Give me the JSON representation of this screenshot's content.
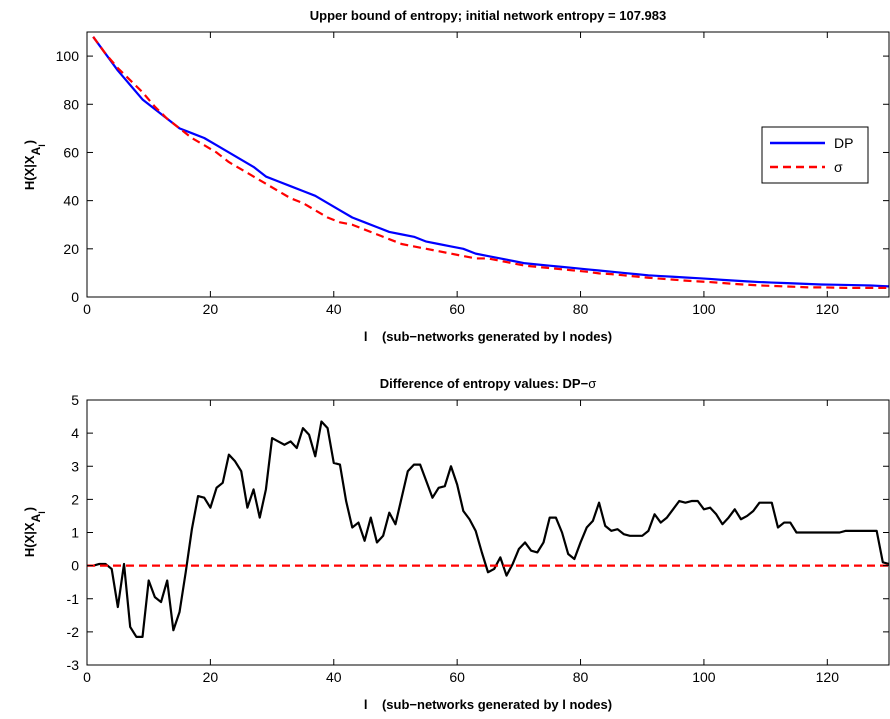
{
  "chart_data": [
    {
      "type": "line",
      "title": "Upper bound of entropy; initial network entropy = 107.983",
      "xlabel": "l    (sub−networks generated by l nodes)",
      "ylabel_main": "H(X|X",
      "ylabel_sub": "A",
      "ylabel_subsub": "l",
      "ylabel_close": ")",
      "xlim": [
        0,
        130
      ],
      "ylim": [
        0,
        110
      ],
      "xticks": [
        0,
        20,
        40,
        60,
        80,
        100,
        120
      ],
      "yticks": [
        0,
        20,
        40,
        60,
        80,
        100
      ],
      "legend_position": "right",
      "series": [
        {
          "name": "DP",
          "color": "#0000ff",
          "style": "solid",
          "x": [
            1,
            3,
            5,
            7,
            9,
            11,
            13,
            15,
            17,
            19,
            21,
            23,
            25,
            27,
            29,
            31,
            33,
            35,
            37,
            39,
            41,
            43,
            45,
            47,
            49,
            51,
            53,
            55,
            57,
            59,
            61,
            63,
            65,
            67,
            69,
            71,
            73,
            75,
            77,
            79,
            81,
            83,
            85,
            87,
            89,
            91,
            93,
            95,
            97,
            99,
            101,
            103,
            105,
            107,
            109,
            111,
            113,
            115,
            117,
            119,
            121,
            123,
            125,
            127,
            129,
            130
          ],
          "y": [
            108,
            101,
            94,
            88,
            82,
            78,
            74,
            70,
            68,
            66,
            63,
            60,
            57,
            54,
            50,
            48,
            46,
            44,
            42,
            39,
            36,
            33,
            31,
            29,
            27,
            26,
            25,
            23,
            22,
            21,
            20,
            18,
            17,
            16,
            15,
            14,
            13.5,
            13,
            12.5,
            12,
            11.5,
            11,
            10.5,
            10,
            9.5,
            9,
            8.7,
            8.4,
            8.1,
            7.8,
            7.5,
            7.1,
            6.8,
            6.5,
            6.2,
            6,
            5.8,
            5.6,
            5.4,
            5.2,
            5.1,
            5,
            4.9,
            4.8,
            4.5,
            4.4
          ]
        },
        {
          "name": "σ",
          "color": "#ff0000",
          "style": "dashed",
          "x": [
            1,
            3,
            5,
            7,
            9,
            11,
            13,
            15,
            17,
            19,
            21,
            23,
            25,
            27,
            29,
            31,
            33,
            35,
            37,
            39,
            41,
            43,
            45,
            47,
            49,
            51,
            53,
            55,
            57,
            59,
            61,
            63,
            65,
            67,
            69,
            71,
            73,
            75,
            77,
            79,
            81,
            83,
            85,
            87,
            89,
            91,
            93,
            95,
            97,
            99,
            101,
            103,
            105,
            107,
            109,
            111,
            113,
            115,
            117,
            119,
            121,
            123,
            125,
            127,
            129,
            130
          ],
          "y": [
            108,
            101,
            95,
            90,
            85,
            79,
            74,
            70,
            66,
            63,
            60,
            56,
            53,
            50,
            47,
            44,
            41,
            39,
            36,
            33,
            31,
            30,
            28,
            26,
            24,
            22,
            21,
            20,
            19,
            18,
            17,
            16,
            16,
            15,
            14,
            13,
            12.5,
            12,
            11.5,
            11,
            10.5,
            9.8,
            9.5,
            9,
            8.5,
            8,
            7.6,
            7.2,
            6.8,
            6.5,
            6.2,
            5.8,
            5.4,
            5.1,
            4.8,
            4.6,
            4.4,
            4.2,
            4,
            4,
            3.9,
            3.8,
            3.8,
            3.8,
            3.8,
            3.8
          ]
        }
      ]
    },
    {
      "type": "line",
      "title_main": "Difference of entropy values: DP−",
      "title_sym": "σ",
      "xlabel": "l    (sub−networks generated by l nodes)",
      "ylabel_main": "H(X|X",
      "ylabel_sub": "A",
      "ylabel_subsub": "l",
      "ylabel_close": ")",
      "xlim": [
        0,
        130
      ],
      "ylim": [
        -3,
        5
      ],
      "xticks": [
        0,
        20,
        40,
        60,
        80,
        100,
        120
      ],
      "yticks": [
        -3,
        -2,
        -1,
        0,
        1,
        2,
        3,
        4,
        5
      ],
      "series": [
        {
          "color": "#000000",
          "style": "solid",
          "x": [
            1,
            2,
            3,
            4,
            5,
            6,
            7,
            8,
            9,
            10,
            11,
            12,
            13,
            14,
            15,
            16,
            17,
            18,
            19,
            20,
            21,
            22,
            23,
            24,
            25,
            26,
            27,
            28,
            29,
            30,
            31,
            32,
            33,
            34,
            35,
            36,
            37,
            38,
            39,
            40,
            41,
            42,
            43,
            44,
            45,
            46,
            47,
            48,
            49,
            50,
            51,
            52,
            53,
            54,
            55,
            56,
            57,
            58,
            59,
            60,
            61,
            62,
            63,
            64,
            65,
            66,
            67,
            68,
            69,
            70,
            71,
            72,
            73,
            74,
            75,
            76,
            77,
            78,
            79,
            80,
            81,
            82,
            83,
            84,
            85,
            86,
            87,
            88,
            89,
            90,
            91,
            92,
            93,
            94,
            95,
            96,
            97,
            98,
            99,
            100,
            101,
            102,
            103,
            104,
            105,
            106,
            107,
            108,
            109,
            110,
            111,
            112,
            113,
            114,
            115,
            116,
            117,
            118,
            119,
            120,
            121,
            122,
            123,
            124,
            125,
            126,
            127,
            128,
            129,
            130
          ],
          "y": [
            0,
            0.05,
            0.05,
            -0.1,
            -1.25,
            0.05,
            -1.85,
            -2.15,
            -2.15,
            -0.45,
            -0.95,
            -1.1,
            -0.45,
            -1.95,
            -1.4,
            -0.2,
            1.1,
            2.1,
            2.05,
            1.75,
            2.35,
            2.5,
            3.35,
            3.15,
            2.85,
            1.75,
            2.3,
            1.45,
            2.3,
            3.85,
            3.75,
            3.65,
            3.75,
            3.55,
            4.15,
            3.95,
            3.3,
            4.35,
            4.15,
            3.1,
            3.05,
            1.95,
            1.15,
            1.3,
            0.75,
            1.45,
            0.7,
            0.9,
            1.6,
            1.25,
            2.05,
            2.85,
            3.05,
            3.05,
            2.55,
            2.05,
            2.35,
            2.4,
            3.0,
            2.45,
            1.65,
            1.4,
            1.05,
            0.4,
            -0.2,
            -0.1,
            0.25,
            -0.3,
            0.05,
            0.5,
            0.7,
            0.45,
            0.4,
            0.7,
            1.45,
            1.45,
            1.0,
            0.35,
            0.2,
            0.7,
            1.15,
            1.35,
            1.9,
            1.2,
            1.05,
            1.1,
            0.95,
            0.9,
            0.9,
            0.9,
            1.05,
            1.55,
            1.3,
            1.45,
            1.7,
            1.95,
            1.9,
            1.95,
            1.95,
            1.7,
            1.75,
            1.55,
            1.25,
            1.45,
            1.7,
            1.4,
            1.5,
            1.65,
            1.9,
            1.9,
            1.9,
            1.15,
            1.3,
            1.3,
            1.0,
            1.0,
            1.0,
            1.0,
            1.0,
            1.0,
            1.0,
            1.0,
            1.05,
            1.05,
            1.05,
            1.05,
            1.05,
            1.05,
            0.1,
            0.05
          ],
          "name": ""
        },
        {
          "color": "#ff0000",
          "style": "dashed",
          "x": [
            0,
            130
          ],
          "y": [
            0,
            0
          ],
          "name": ""
        }
      ]
    }
  ]
}
